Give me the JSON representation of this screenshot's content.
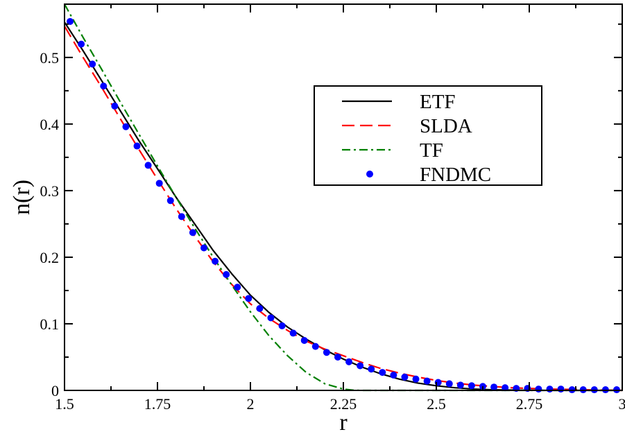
{
  "chart_data": {
    "type": "line",
    "xlabel": "r",
    "ylabel": "n(r)",
    "xlim": [
      1.5,
      3.0
    ],
    "ylim": [
      0,
      0.58
    ],
    "x_ticks": [
      1.5,
      1.75,
      2.0,
      2.25,
      2.5,
      2.75,
      3.0
    ],
    "x_tick_labels": [
      "1.5",
      "1.75",
      "2",
      "2.25",
      "2.5",
      "2.75",
      "3"
    ],
    "y_ticks": [
      0,
      0.1,
      0.2,
      0.3,
      0.4,
      0.5
    ],
    "y_tick_labels": [
      "0",
      "0.1",
      "0.2",
      "0.3",
      "0.4",
      "0.5"
    ],
    "grid": false,
    "legend_position": "upper-right",
    "series": [
      {
        "name": "ETF",
        "style": "solid",
        "color": "#000000",
        "x": [
          1.5,
          1.55,
          1.6,
          1.65,
          1.7,
          1.75,
          1.8,
          1.85,
          1.9,
          1.95,
          2.0,
          2.05,
          2.1,
          2.15,
          2.2,
          2.25,
          2.3,
          2.35,
          2.4,
          2.45,
          2.5,
          2.55,
          2.6,
          2.65,
          2.7,
          2.75,
          2.8,
          2.9,
          3.0
        ],
        "y": [
          0.553,
          0.51,
          0.465,
          0.42,
          0.375,
          0.333,
          0.29,
          0.25,
          0.21,
          0.175,
          0.143,
          0.117,
          0.095,
          0.077,
          0.061,
          0.047,
          0.035,
          0.025,
          0.017,
          0.011,
          0.007,
          0.004,
          0.002,
          0.001,
          0.0005,
          0.0002,
          0.0,
          0.0,
          0.0
        ]
      },
      {
        "name": "SLDA",
        "style": "dashed",
        "color": "#ff0000",
        "x": [
          1.5,
          1.55,
          1.6,
          1.65,
          1.7,
          1.75,
          1.8,
          1.85,
          1.9,
          1.95,
          2.0,
          2.05,
          2.1,
          2.15,
          2.2,
          2.25,
          2.3,
          2.35,
          2.4,
          2.45,
          2.5,
          2.55,
          2.6,
          2.65,
          2.7,
          2.75,
          2.8,
          2.9,
          3.0
        ],
        "y": [
          0.547,
          0.5,
          0.455,
          0.408,
          0.362,
          0.317,
          0.273,
          0.232,
          0.193,
          0.159,
          0.13,
          0.108,
          0.09,
          0.074,
          0.062,
          0.052,
          0.042,
          0.033,
          0.026,
          0.02,
          0.015,
          0.011,
          0.008,
          0.006,
          0.004,
          0.003,
          0.002,
          0.001,
          0.0
        ]
      },
      {
        "name": "TF",
        "style": "dash-dot",
        "color": "#008000",
        "x": [
          1.5,
          1.55,
          1.6,
          1.65,
          1.7,
          1.75,
          1.8,
          1.85,
          1.9,
          1.95,
          2.0,
          2.05,
          2.1,
          2.15,
          2.2,
          2.25,
          2.28,
          2.3,
          2.35,
          2.5,
          2.75,
          3.0
        ],
        "y": [
          0.58,
          0.53,
          0.482,
          0.433,
          0.385,
          0.337,
          0.29,
          0.244,
          0.2,
          0.158,
          0.118,
          0.082,
          0.052,
          0.027,
          0.01,
          0.002,
          0.0002,
          0.0,
          0.0,
          0.0,
          0.0,
          0.0
        ]
      },
      {
        "name": "FNDMC",
        "style": "markers",
        "color": "#0000ff",
        "x": [
          1.515,
          1.545,
          1.575,
          1.605,
          1.635,
          1.665,
          1.695,
          1.725,
          1.755,
          1.785,
          1.815,
          1.845,
          1.875,
          1.905,
          1.935,
          1.965,
          1.995,
          2.025,
          2.055,
          2.085,
          2.115,
          2.145,
          2.175,
          2.205,
          2.235,
          2.265,
          2.295,
          2.325,
          2.355,
          2.385,
          2.415,
          2.445,
          2.475,
          2.505,
          2.535,
          2.565,
          2.595,
          2.625,
          2.655,
          2.685,
          2.715,
          2.745,
          2.775,
          2.805,
          2.835,
          2.865,
          2.895,
          2.925,
          2.955,
          2.985
        ],
        "y": [
          0.554,
          0.52,
          0.49,
          0.457,
          0.427,
          0.396,
          0.367,
          0.338,
          0.311,
          0.285,
          0.261,
          0.237,
          0.214,
          0.194,
          0.174,
          0.155,
          0.138,
          0.123,
          0.109,
          0.097,
          0.086,
          0.075,
          0.066,
          0.057,
          0.05,
          0.043,
          0.037,
          0.032,
          0.027,
          0.023,
          0.02,
          0.017,
          0.014,
          0.012,
          0.01,
          0.008,
          0.007,
          0.006,
          0.005,
          0.004,
          0.003,
          0.003,
          0.002,
          0.002,
          0.002,
          0.001,
          0.001,
          0.001,
          0.001,
          0.001
        ]
      }
    ]
  }
}
